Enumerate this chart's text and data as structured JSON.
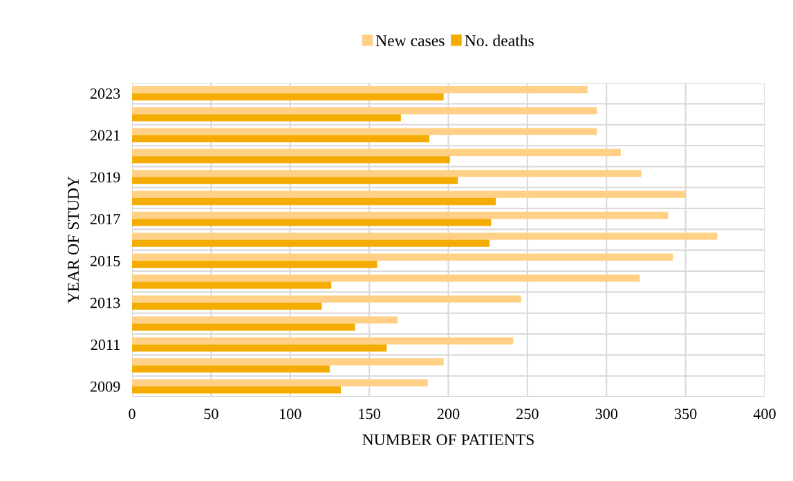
{
  "chart_data": {
    "type": "bar",
    "orientation": "horizontal",
    "xlabel": "NUMBER OF PATIENTS",
    "ylabel": "YEAR OF STUDY",
    "categories": [
      "2023",
      null,
      "2021",
      null,
      "2019",
      null,
      "2017",
      null,
      "2015",
      null,
      "2013",
      null,
      "2011",
      null,
      "2009"
    ],
    "series": [
      {
        "name": "New cases",
        "color": "#ffd085",
        "values": [
          288,
          294,
          294,
          309,
          322,
          350,
          339,
          370,
          342,
          321,
          246,
          168,
          241,
          197,
          187
        ]
      },
      {
        "name": "No. deaths",
        "color": "#f5ac00",
        "values": [
          197,
          170,
          188,
          201,
          206,
          230,
          227,
          226,
          155,
          126,
          120,
          141,
          161,
          125,
          132
        ]
      }
    ],
    "xlim": [
      0,
      400
    ],
    "xticks": [
      0,
      50,
      100,
      150,
      200,
      250,
      300,
      350,
      400
    ],
    "grid": true,
    "legend": "top"
  }
}
